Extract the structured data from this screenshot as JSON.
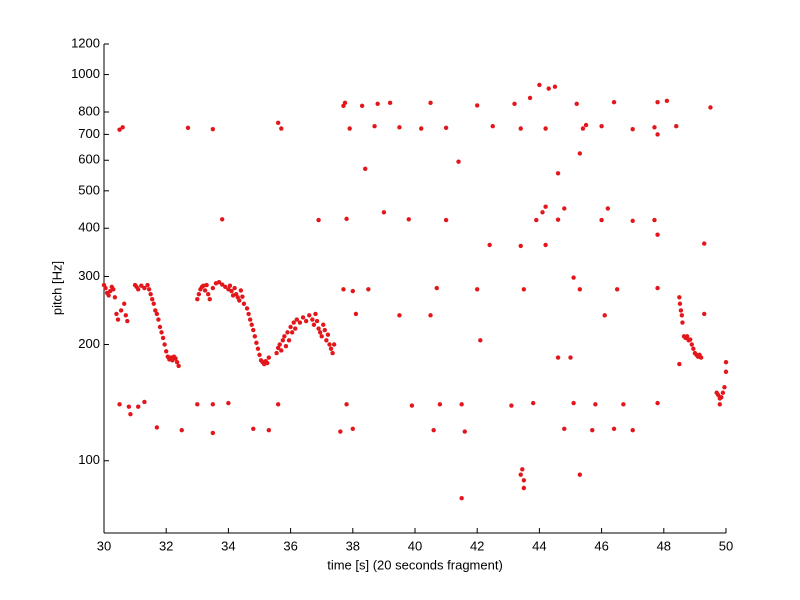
{
  "chart_data": {
    "type": "scatter",
    "x_label": "time [s] (20 seconds fragment)",
    "y_label": "pitch [Hz]",
    "xlim": [
      30,
      50
    ],
    "xticks": [
      30,
      32,
      34,
      36,
      38,
      40,
      42,
      44,
      46,
      48,
      50
    ],
    "ylim": [
      65,
      1200
    ],
    "yticks": [
      100,
      200,
      300,
      400,
      500,
      600,
      700,
      800,
      1000,
      1200
    ],
    "log_y": true,
    "series": [
      {
        "color": "#e3161b",
        "x": [
          30.0,
          30.05,
          30.1,
          30.15,
          30.2,
          30.25,
          30.3,
          30.35,
          30.4,
          30.45,
          30.55,
          30.65,
          30.7,
          30.75,
          31.0,
          31.05,
          31.1,
          31.2,
          31.3,
          31.4,
          31.45,
          31.5,
          31.55,
          31.6,
          31.65,
          31.7,
          31.75,
          31.8,
          31.85,
          31.9,
          31.95,
          32.0,
          32.05,
          32.1,
          32.15,
          32.2,
          32.25,
          32.3,
          32.35,
          32.4,
          33.0,
          33.05,
          33.1,
          33.15,
          33.2,
          33.25,
          33.3,
          33.35,
          33.4,
          33.5,
          33.6,
          33.7,
          33.8,
          33.9,
          34.0,
          34.05,
          34.1,
          34.15,
          34.2,
          34.25,
          34.3,
          34.35,
          34.4,
          34.45,
          34.5,
          34.6,
          34.65,
          34.7,
          34.75,
          34.8,
          34.85,
          34.9,
          34.95,
          35.0,
          35.05,
          35.1,
          35.15,
          35.2,
          35.25,
          35.3,
          35.55,
          35.6,
          35.65,
          35.7,
          35.75,
          35.8,
          35.85,
          35.9,
          35.95,
          36.0,
          36.05,
          36.1,
          36.15,
          36.2,
          36.3,
          36.4,
          36.5,
          36.6,
          36.7,
          36.75,
          36.8,
          36.85,
          36.9,
          36.95,
          37.0,
          37.05,
          37.1,
          37.15,
          37.2,
          37.25,
          37.3,
          37.35,
          37.4,
          48.5,
          48.52,
          48.55,
          48.58,
          48.6,
          48.5,
          48.65,
          48.7,
          48.75,
          48.8,
          48.85,
          48.9,
          48.95,
          49.0,
          49.05,
          49.1,
          49.15,
          49.2,
          49.7,
          49.75,
          49.8,
          49.85,
          49.9,
          49.95,
          50.0,
          50.0,
          30.5,
          30.6,
          32.7,
          33.5,
          35.6,
          35.7,
          30.5,
          30.8,
          30.85,
          31.1,
          31.3,
          33.0,
          33.5,
          34.0,
          35.6,
          37.8,
          39.9,
          40.8,
          41.5,
          43.1,
          43.8,
          45.1,
          45.8,
          46.7,
          47.8,
          49.8,
          31.7,
          32.5,
          33.5,
          34.8,
          35.3,
          37.6,
          38.0,
          40.6,
          41.6,
          44.8,
          45.7,
          46.4,
          47.0,
          33.8,
          36.9,
          37.8,
          39.8,
          41.0,
          43.9,
          44.6,
          46.0,
          47.0,
          47.7,
          37.7,
          38.0,
          38.5,
          40.7,
          42.0,
          43.5,
          45.3,
          46.5,
          47.8,
          38.1,
          39.5,
          40.5,
          46.1,
          49.3,
          42.1,
          37.7,
          37.75,
          38.3,
          38.8,
          39.2,
          40.5,
          42.0,
          43.2,
          43.7,
          44.5,
          44.0,
          44.3,
          45.2,
          46.4,
          47.8,
          48.1,
          49.5,
          37.9,
          38.7,
          39.5,
          40.2,
          41.0,
          42.5,
          43.4,
          44.2,
          45.4,
          45.5,
          46.0,
          47.0,
          47.7,
          48.4,
          47.8,
          42.4,
          43.4,
          44.2,
          49.3,
          39.0,
          44.2,
          44.8,
          46.2,
          47.8,
          44.1,
          41.4,
          38.4,
          44.6,
          45.3,
          44.6,
          45.0,
          45.1,
          43.4,
          43.45,
          43.5,
          43.5,
          45.3,
          41.5
        ],
        "values": [
          285,
          280,
          272,
          268,
          275,
          282,
          278,
          265,
          240,
          232,
          245,
          255,
          238,
          230,
          285,
          282,
          278,
          284,
          280,
          285,
          278,
          270,
          262,
          255,
          245,
          240,
          232,
          222,
          215,
          208,
          200,
          192,
          186,
          183,
          185,
          182,
          186,
          184,
          180,
          176,
          262,
          270,
          278,
          282,
          284,
          276,
          285,
          270,
          262,
          280,
          288,
          290,
          286,
          282,
          278,
          284,
          275,
          268,
          280,
          270,
          265,
          260,
          276,
          266,
          255,
          248,
          240,
          232,
          225,
          218,
          210,
          202,
          195,
          188,
          182,
          180,
          178,
          181,
          179,
          185,
          190,
          196,
          200,
          193,
          205,
          210,
          198,
          215,
          205,
          222,
          215,
          228,
          220,
          232,
          228,
          235,
          230,
          238,
          232,
          225,
          240,
          230,
          220,
          215,
          210,
          225,
          218,
          205,
          212,
          200,
          195,
          190,
          200,
          265,
          255,
          245,
          238,
          228,
          178,
          210,
          208,
          210,
          205,
          206,
          200,
          195,
          190,
          188,
          186,
          188,
          185,
          150,
          148,
          145,
          146,
          150,
          155,
          180,
          170,
          720,
          730,
          728,
          722,
          750,
          725,
          140,
          138,
          132,
          138,
          142,
          140,
          140,
          141,
          140,
          140,
          139,
          140,
          140,
          139,
          141,
          141,
          140,
          140,
          141,
          140,
          122,
          120,
          118,
          121,
          120,
          119,
          121,
          120,
          119,
          121,
          120,
          121,
          120,
          422,
          420,
          423,
          422,
          420,
          420,
          421,
          420,
          418,
          420,
          278,
          275,
          278,
          280,
          278,
          278,
          278,
          278,
          280,
          240,
          238,
          238,
          238,
          240,
          205,
          830,
          845,
          830,
          840,
          845,
          845,
          832,
          840,
          870,
          930,
          940,
          920,
          840,
          848,
          848,
          855,
          822,
          725,
          735,
          730,
          725,
          728,
          735,
          725,
          725,
          725,
          740,
          735,
          722,
          730,
          735,
          700,
          362,
          360,
          362,
          365,
          440,
          455,
          450,
          450,
          385,
          440,
          595,
          570,
          555,
          625,
          185,
          185,
          298,
          92,
          95,
          89,
          85,
          92,
          80
        ]
      }
    ]
  }
}
